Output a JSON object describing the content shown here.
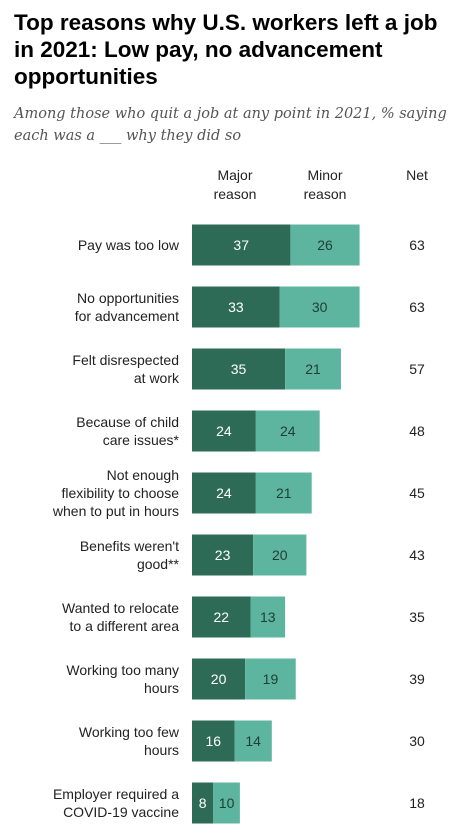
{
  "title": "Top reasons why U.S. workers left a job in 2021: Low pay, no advancement opportunities",
  "subtitle": "Among those who quit a job at any point in 2021, % saying each was a ___ why they did so",
  "columns": {
    "major": [
      "Major",
      "reason"
    ],
    "minor": [
      "Minor",
      "reason"
    ],
    "net": "Net"
  },
  "colors": {
    "major": "#2d6b57",
    "minor": "#5eb59f"
  },
  "chart_data": {
    "type": "bar",
    "orientation": "horizontal",
    "stacked": true,
    "categories": [
      [
        "Pay was too low"
      ],
      [
        "No opportunities",
        "for advancement"
      ],
      [
        "Felt disrespected",
        "at work"
      ],
      [
        "Because of child",
        "care issues*"
      ],
      [
        "Not enough",
        "flexibility to choose",
        "when to put in hours"
      ],
      [
        "Benefits weren't",
        "good**"
      ],
      [
        "Wanted to relocate",
        "to a different area"
      ],
      [
        "Working too many",
        "hours"
      ],
      [
        "Working too few",
        "hours"
      ],
      [
        "Employer required a",
        "COVID-19 vaccine"
      ]
    ],
    "series": [
      {
        "name": "Major reason",
        "values": [
          37,
          33,
          35,
          24,
          24,
          23,
          22,
          20,
          16,
          8
        ]
      },
      {
        "name": "Minor reason",
        "values": [
          26,
          30,
          21,
          24,
          21,
          20,
          13,
          19,
          14,
          10
        ]
      }
    ],
    "net": [
      63,
      63,
      57,
      48,
      45,
      43,
      35,
      39,
      30,
      18
    ]
  }
}
